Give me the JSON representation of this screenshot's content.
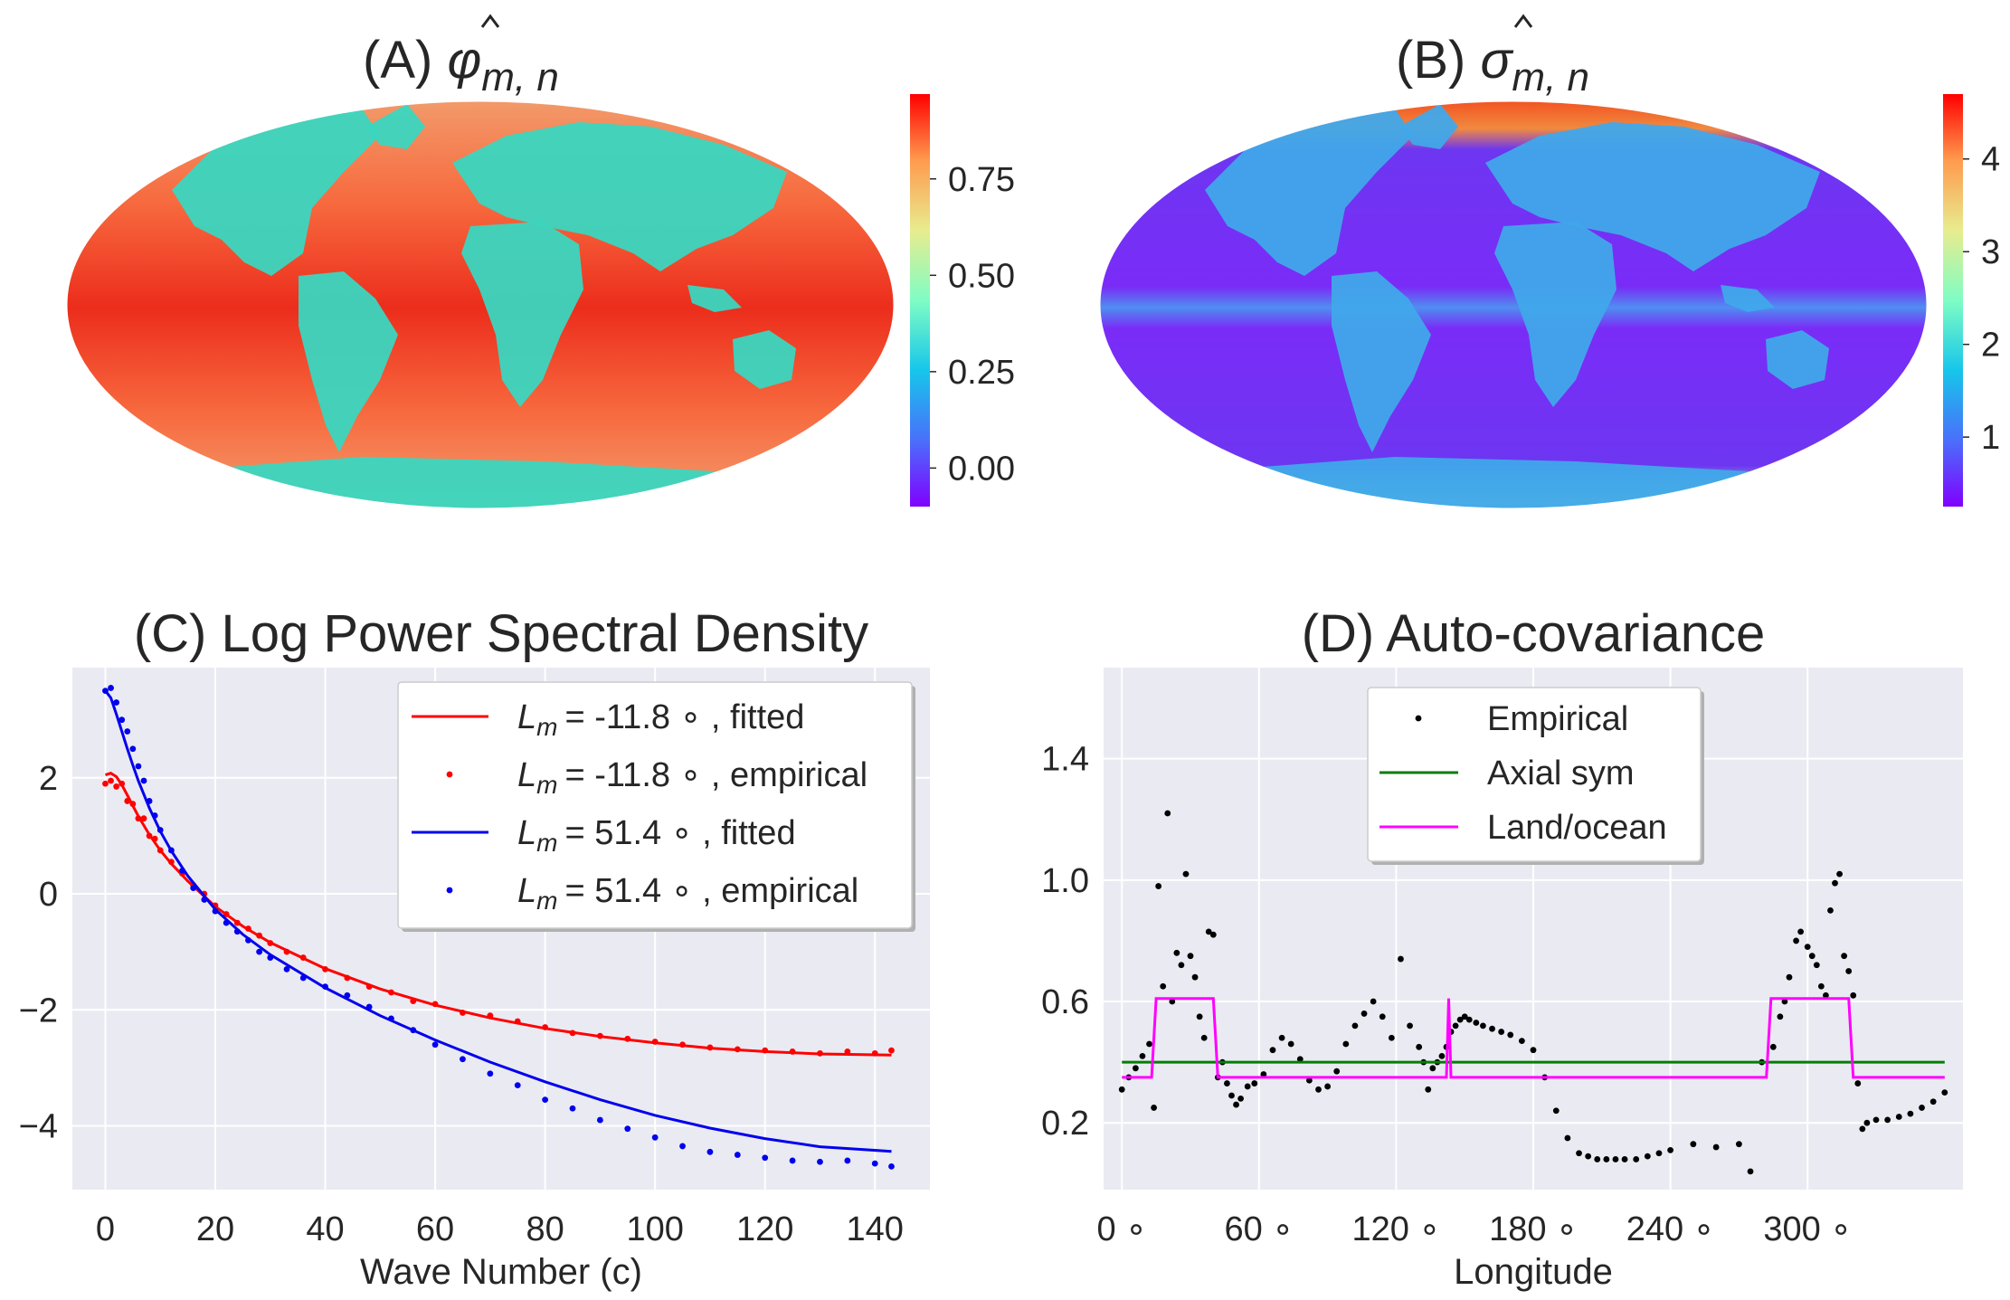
{
  "chart_data": [
    {
      "type": "heatmap",
      "title_prefix": "(A) ",
      "title_symbol": "φ",
      "title_subscript": "m, n",
      "colorbar_ticks": [
        "0.00",
        "0.25",
        "0.50",
        "0.75"
      ],
      "colorbar_tick_values": [
        0.0,
        0.25,
        0.5,
        0.75
      ],
      "colorbar_range": [
        -0.1,
        0.97
      ],
      "colormap": "rainbow",
      "colors": {
        "ocean": "#f05030",
        "land": "#3ad6c0",
        "high": "#e8271a",
        "low": "#8022ff"
      }
    },
    {
      "type": "heatmap",
      "title_prefix": "(B) ",
      "title_symbol": "σ",
      "title_subscript": "m, n",
      "colorbar_ticks": [
        "1",
        "2",
        "3",
        "4"
      ],
      "colorbar_tick_values": [
        1,
        2,
        3,
        4
      ],
      "colorbar_range": [
        0.25,
        4.7
      ],
      "colormap": "rainbow",
      "colors": {
        "ocean": "#6a31f0",
        "land": "#40a8ea",
        "polar": "#f04a25"
      }
    },
    {
      "type": "line",
      "title": "(C) Log Power Spectral Density",
      "xlabel": "Wave Number (c)",
      "ylabel": "",
      "xlim": [
        -6,
        150
      ],
      "ylim": [
        -5.1,
        3.9
      ],
      "xticks": [
        0,
        20,
        40,
        60,
        80,
        100,
        120,
        140
      ],
      "xtick_labels": [
        "0",
        "20",
        "40",
        "60",
        "80",
        "100",
        "120",
        "140"
      ],
      "yticks": [
        2,
        0,
        -2,
        -4
      ],
      "ytick_labels": [
        "2",
        "0",
        "−2",
        "−4"
      ],
      "legend_position": "top-right",
      "series": [
        {
          "name": "Lm = -11.8°, fitted",
          "label_tail": "= -11.8 ∘ , fitted",
          "kind": "line",
          "color": "#ff0000",
          "x": [
            0,
            1,
            2,
            3,
            4,
            5,
            6,
            8,
            10,
            12,
            15,
            20,
            25,
            30,
            40,
            50,
            60,
            70,
            80,
            90,
            100,
            110,
            120,
            130,
            143
          ],
          "y": [
            2.05,
            2.08,
            2.02,
            1.88,
            1.7,
            1.52,
            1.34,
            1.02,
            0.75,
            0.52,
            0.22,
            -0.22,
            -0.56,
            -0.84,
            -1.29,
            -1.64,
            -1.92,
            -2.14,
            -2.32,
            -2.46,
            -2.57,
            -2.66,
            -2.72,
            -2.76,
            -2.78
          ]
        },
        {
          "name": "Lm = -11.8°, empirical",
          "label_tail": "= -11.8 ∘ , empirical",
          "kind": "points",
          "color": "#ff0000",
          "x": [
            0,
            1,
            2,
            3,
            4,
            5,
            6,
            7,
            8,
            9,
            10,
            12,
            14,
            16,
            18,
            20,
            22,
            24,
            26,
            28,
            30,
            33,
            36,
            40,
            44,
            48,
            52,
            56,
            60,
            65,
            70,
            75,
            80,
            85,
            90,
            95,
            100,
            105,
            110,
            115,
            120,
            125,
            130,
            135,
            140,
            143
          ],
          "y": [
            1.9,
            1.95,
            1.85,
            1.9,
            1.6,
            1.55,
            1.3,
            1.3,
            1.0,
            0.95,
            0.75,
            0.55,
            0.35,
            0.15,
            0.0,
            -0.2,
            -0.35,
            -0.5,
            -0.6,
            -0.72,
            -0.85,
            -1.0,
            -1.1,
            -1.3,
            -1.45,
            -1.6,
            -1.7,
            -1.85,
            -1.9,
            -2.05,
            -2.1,
            -2.2,
            -2.3,
            -2.4,
            -2.45,
            -2.5,
            -2.55,
            -2.6,
            -2.65,
            -2.68,
            -2.7,
            -2.72,
            -2.75,
            -2.72,
            -2.75,
            -2.7
          ]
        },
        {
          "name": "Lm = 51.4°, fitted",
          "label_tail": "= 51.4 ∘ , fitted",
          "kind": "line",
          "color": "#0000ee",
          "x": [
            0,
            1,
            2,
            3,
            4,
            5,
            6,
            8,
            10,
            12,
            15,
            20,
            25,
            30,
            40,
            50,
            60,
            70,
            80,
            90,
            100,
            110,
            120,
            130,
            143
          ],
          "y": [
            3.5,
            3.38,
            3.1,
            2.8,
            2.5,
            2.22,
            1.95,
            1.48,
            1.08,
            0.74,
            0.31,
            -0.27,
            -0.7,
            -1.05,
            -1.62,
            -2.1,
            -2.52,
            -2.9,
            -3.24,
            -3.55,
            -3.82,
            -4.04,
            -4.22,
            -4.36,
            -4.44
          ]
        },
        {
          "name": "Lm = 51.4°, empirical",
          "label_tail": "= 51.4 ∘ , empirical",
          "kind": "points",
          "color": "#0000ee",
          "x": [
            0,
            1,
            2,
            3,
            4,
            5,
            6,
            7,
            8,
            9,
            10,
            12,
            14,
            16,
            18,
            20,
            22,
            24,
            26,
            28,
            30,
            33,
            36,
            40,
            44,
            48,
            52,
            56,
            60,
            65,
            70,
            75,
            80,
            85,
            90,
            95,
            100,
            105,
            110,
            115,
            120,
            125,
            130,
            135,
            140,
            143
          ],
          "y": [
            3.5,
            3.55,
            3.3,
            3.0,
            2.8,
            2.5,
            2.2,
            1.95,
            1.6,
            1.35,
            1.1,
            0.75,
            0.4,
            0.1,
            -0.1,
            -0.3,
            -0.5,
            -0.65,
            -0.8,
            -1.0,
            -1.1,
            -1.3,
            -1.45,
            -1.6,
            -1.75,
            -1.95,
            -2.15,
            -2.35,
            -2.6,
            -2.85,
            -3.1,
            -3.3,
            -3.55,
            -3.7,
            -3.9,
            -4.05,
            -4.2,
            -4.35,
            -4.45,
            -4.5,
            -4.55,
            -4.6,
            -4.62,
            -4.6,
            -4.65,
            -4.7
          ]
        }
      ]
    },
    {
      "type": "scatter",
      "title": "(D) Auto-covariance",
      "xlabel": "Longitude",
      "ylabel": "",
      "xlim": [
        -8,
        368
      ],
      "ylim": [
        -0.02,
        1.7
      ],
      "xticks": [
        0,
        60,
        120,
        180,
        240,
        300
      ],
      "xtick_labels": [
        "0 ∘",
        "60 ∘",
        "120 ∘",
        "180 ∘",
        "240 ∘",
        "300 ∘"
      ],
      "yticks": [
        0.2,
        0.6,
        1.0,
        1.4
      ],
      "ytick_labels": [
        "0.2",
        "0.6",
        "1.0",
        "1.4"
      ],
      "legend_position": "top-center",
      "series": [
        {
          "name": "Empirical",
          "kind": "points",
          "color": "#000000",
          "x": [
            0,
            3,
            6,
            9,
            12,
            14,
            16,
            18,
            20,
            22,
            24,
            26,
            28,
            30,
            32,
            34,
            36,
            38,
            40,
            42,
            44,
            46,
            48,
            50,
            52,
            55,
            58,
            62,
            66,
            70,
            74,
            78,
            82,
            86,
            90,
            94,
            98,
            102,
            106,
            110,
            114,
            118,
            122,
            126,
            130,
            132,
            134,
            136,
            138,
            140,
            142,
            144,
            146,
            148,
            150,
            152,
            155,
            158,
            162,
            166,
            170,
            175,
            180,
            185,
            190,
            195,
            200,
            204,
            208,
            212,
            216,
            220,
            225,
            230,
            235,
            240,
            250,
            260,
            270,
            275,
            280,
            285,
            288,
            290,
            292,
            295,
            297,
            300,
            302,
            304,
            306,
            308,
            310,
            312,
            314,
            316,
            318,
            320,
            322,
            324,
            326,
            330,
            335,
            340,
            345,
            350,
            355,
            360
          ],
          "y": [
            0.31,
            0.35,
            0.38,
            0.42,
            0.46,
            0.25,
            0.98,
            0.65,
            1.22,
            0.6,
            0.76,
            0.72,
            1.02,
            0.75,
            0.68,
            0.55,
            0.48,
            0.83,
            0.82,
            0.35,
            0.4,
            0.33,
            0.29,
            0.26,
            0.28,
            0.32,
            0.33,
            0.36,
            0.44,
            0.48,
            0.46,
            0.41,
            0.34,
            0.31,
            0.32,
            0.37,
            0.46,
            0.52,
            0.56,
            0.6,
            0.55,
            0.48,
            0.74,
            0.52,
            0.45,
            0.4,
            0.31,
            0.38,
            0.4,
            0.42,
            0.45,
            0.5,
            0.52,
            0.54,
            0.55,
            0.54,
            0.53,
            0.52,
            0.51,
            0.5,
            0.49,
            0.47,
            0.44,
            0.35,
            0.24,
            0.15,
            0.1,
            0.09,
            0.08,
            0.08,
            0.08,
            0.08,
            0.08,
            0.09,
            0.1,
            0.11,
            0.13,
            0.12,
            0.13,
            0.04,
            0.4,
            0.45,
            0.55,
            0.6,
            0.68,
            0.8,
            0.83,
            0.78,
            0.75,
            0.72,
            0.65,
            0.62,
            0.9,
            0.99,
            1.02,
            0.75,
            0.7,
            0.62,
            0.33,
            0.18,
            0.2,
            0.21,
            0.21,
            0.22,
            0.23,
            0.25,
            0.27,
            0.3
          ]
        },
        {
          "name": "Axial sym",
          "kind": "line",
          "color": "#008000",
          "x": [
            0,
            360
          ],
          "y": [
            0.4,
            0.4
          ]
        },
        {
          "name": "Land/ocean",
          "kind": "line",
          "color": "#ff00ff",
          "x": [
            0,
            13,
            15,
            40,
            42,
            142,
            143,
            144,
            282,
            284,
            318,
            320,
            360
          ],
          "y": [
            0.35,
            0.35,
            0.61,
            0.61,
            0.35,
            0.35,
            0.61,
            0.35,
            0.35,
            0.61,
            0.61,
            0.35,
            0.35
          ]
        }
      ]
    }
  ]
}
